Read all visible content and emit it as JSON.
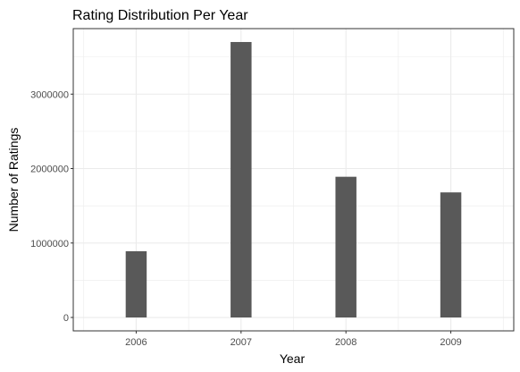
{
  "chart_data": {
    "type": "bar",
    "title": "Rating Distribution Per Year",
    "xlabel": "Year",
    "ylabel": "Number of Ratings",
    "categories": [
      "2006",
      "2007",
      "2008",
      "2009"
    ],
    "values": [
      890000,
      3700000,
      1890000,
      1680000
    ],
    "ylim": [
      -180000,
      3880000
    ],
    "yticks": [
      0,
      1000000,
      2000000,
      3000000
    ],
    "ytick_labels": [
      "0",
      "1000000",
      "2000000",
      "3000000"
    ],
    "grid": true,
    "legend": "none",
    "colors": {
      "bar": "#595959",
      "grid": "#ebebeb",
      "panel_border": "#333333",
      "tick_label": "#4d4d4d"
    }
  }
}
